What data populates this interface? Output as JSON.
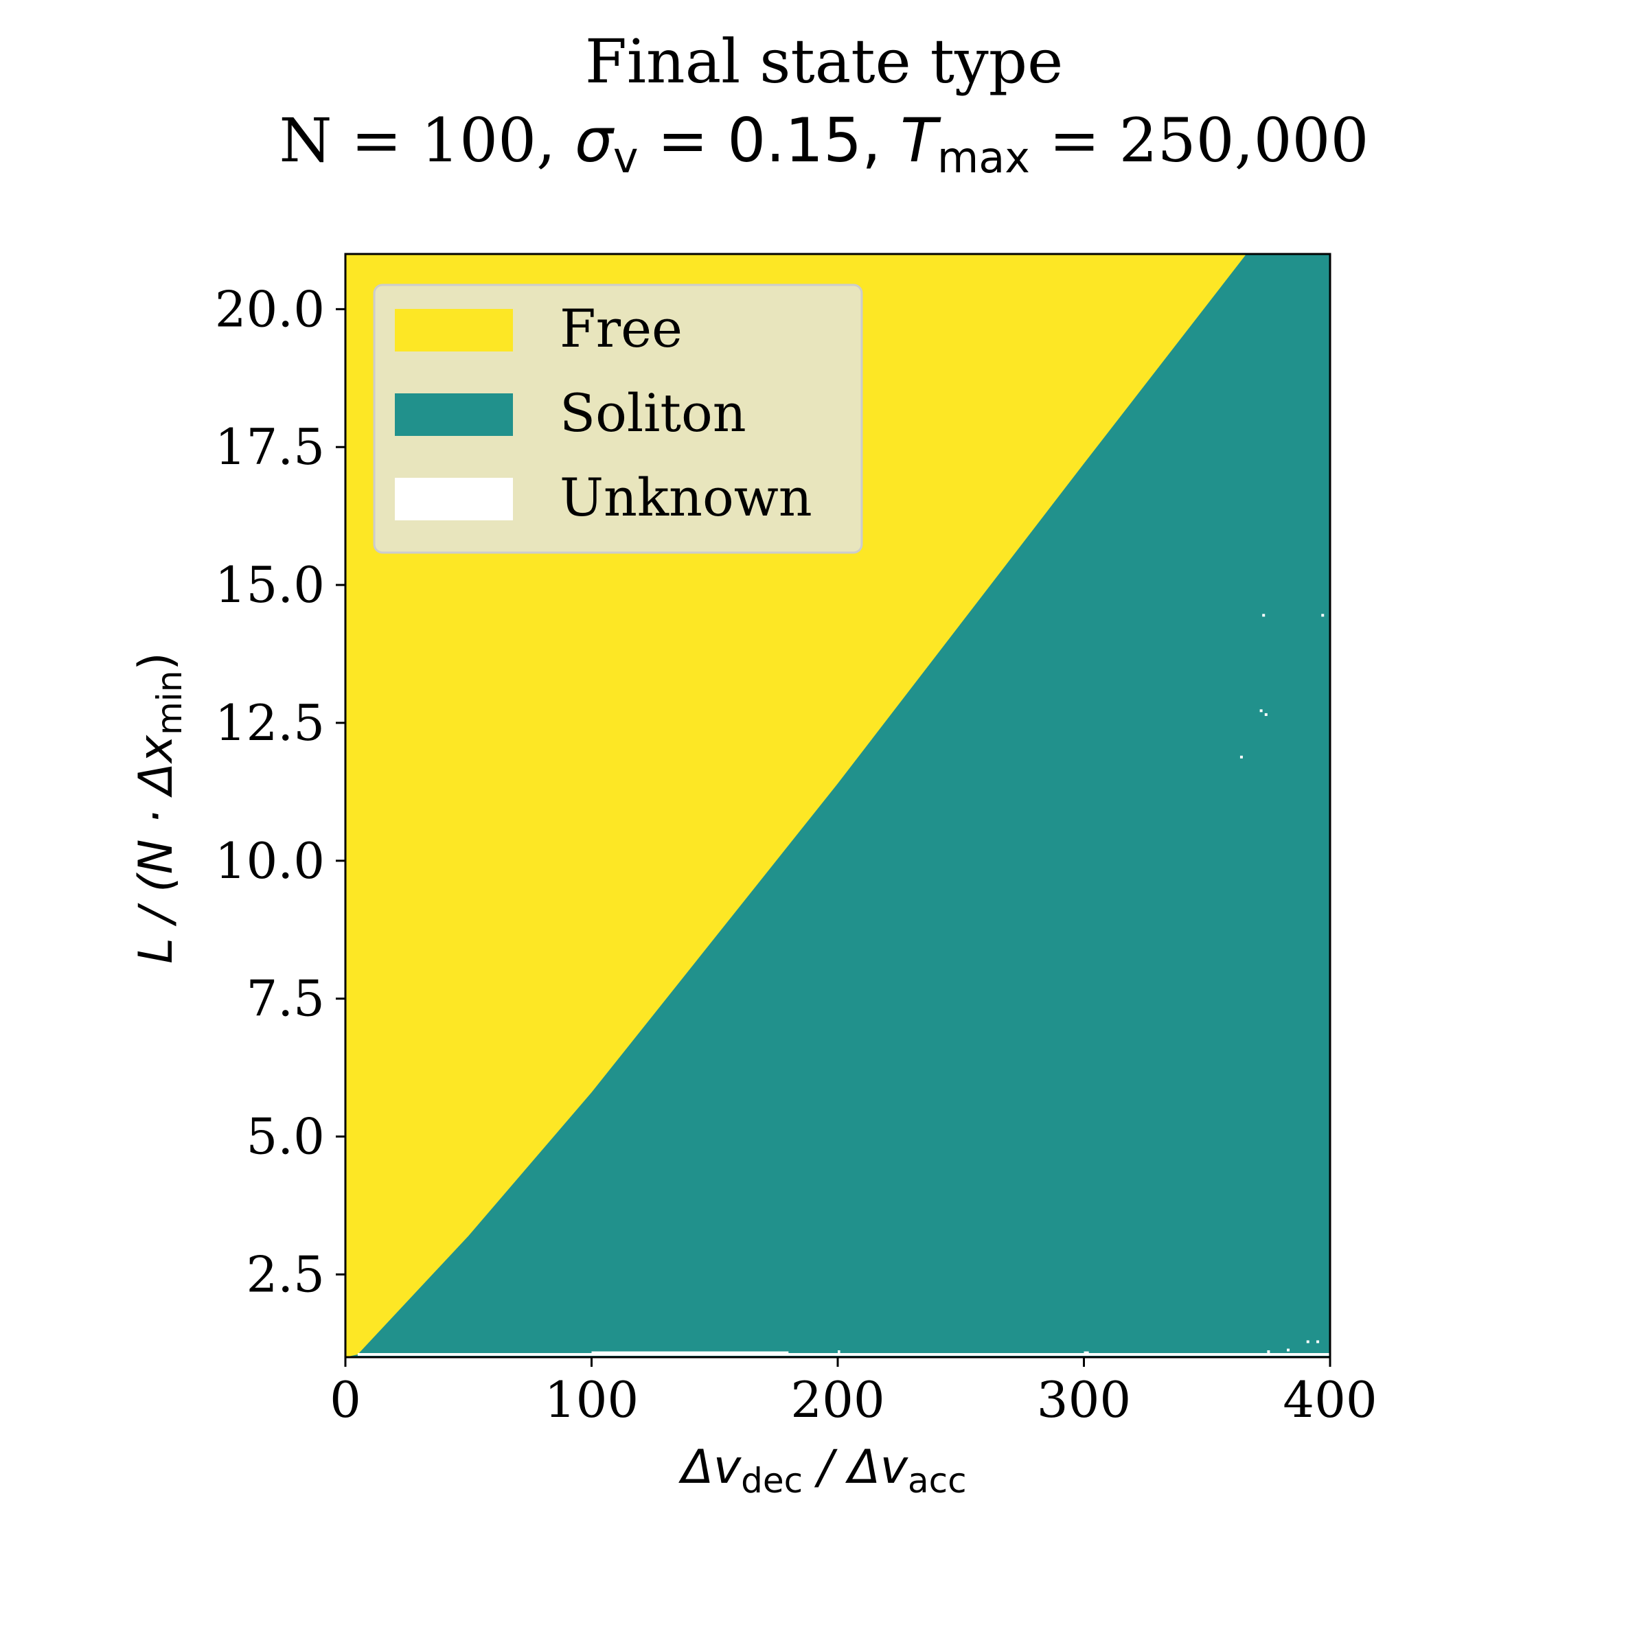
{
  "chart_data": {
    "type": "heatmap",
    "title": {
      "line1": "Final state type",
      "line2_prefix": "N = 100, ",
      "sigma_symbol": "σ",
      "sigma_sub": "v",
      "sigma_eq": " = 0.15, ",
      "tmax_symbol": "T",
      "tmax_sub": "max",
      "tmax_eq": " = 250,000"
    },
    "xlabel": {
      "part1": "Δv",
      "part1_sub": "dec",
      "mid": " / Δv",
      "part2_sub": "acc"
    },
    "ylabel": {
      "part1": "L / (N · Δx",
      "sub": "min",
      "part2": ")"
    },
    "xlim": [
      0,
      400
    ],
    "ylim": [
      1.0,
      21.0
    ],
    "x_ticks": [
      0,
      100,
      200,
      300,
      400
    ],
    "x_tick_labels": [
      "0",
      "100",
      "200",
      "300",
      "400"
    ],
    "y_ticks": [
      2.5,
      5.0,
      7.5,
      10.0,
      12.5,
      15.0,
      17.5,
      20.0
    ],
    "y_tick_labels": [
      "2.5",
      "5.0",
      "7.5",
      "10.0",
      "12.5",
      "15.0",
      "17.5",
      "20.0"
    ],
    "legend": {
      "position": "upper-left",
      "entries": [
        {
          "label": "Free",
          "color": "#fde725"
        },
        {
          "label": "Soliton",
          "color": "#21918c"
        },
        {
          "label": "Unknown",
          "color": "#ffffff"
        }
      ]
    },
    "regions": {
      "free_color": "#fde725",
      "soliton_color": "#21918c",
      "unknown_color": "#ffffff",
      "boundary_description": "Free above boundary, Soliton below",
      "boundary_points": [
        {
          "x": 0,
          "y": 1.0
        },
        {
          "x": 5,
          "y": 1.05
        },
        {
          "x": 50,
          "y": 3.2
        },
        {
          "x": 100,
          "y": 5.8
        },
        {
          "x": 150,
          "y": 8.6
        },
        {
          "x": 200,
          "y": 11.4
        },
        {
          "x": 250,
          "y": 14.3
        },
        {
          "x": 300,
          "y": 17.2
        },
        {
          "x": 366,
          "y": 21.0
        }
      ],
      "unknown_points": [
        {
          "x": 373,
          "y": 14.45
        },
        {
          "x": 397,
          "y": 14.45
        },
        {
          "x": 372,
          "y": 12.72
        },
        {
          "x": 374,
          "y": 12.65
        },
        {
          "x": 364,
          "y": 11.88
        },
        {
          "x": 375,
          "y": 1.1
        },
        {
          "x": 383,
          "y": 1.13
        },
        {
          "x": 391,
          "y": 1.28
        },
        {
          "x": 395,
          "y": 1.28
        }
      ],
      "unknown_bottom_segments": [
        {
          "x0": 75,
          "x1": 190,
          "y": 1.05
        },
        {
          "x0": 100,
          "x1": 180,
          "y": 1.08
        },
        {
          "x0": 300,
          "x1": 302,
          "y": 1.08
        },
        {
          "x0": 200,
          "x1": 201,
          "y": 1.1
        }
      ]
    }
  }
}
